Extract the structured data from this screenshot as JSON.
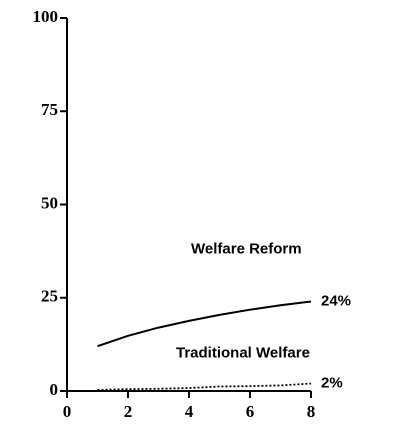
{
  "chart_data": {
    "type": "line",
    "x": [
      1,
      2,
      3,
      4,
      5,
      6,
      7,
      8
    ],
    "series": [
      {
        "name": "Welfare Reform",
        "color": "#000000",
        "dash": "solid",
        "values": [
          12,
          14.8,
          17,
          18.8,
          20.4,
          21.8,
          23,
          24
        ],
        "value_labels": [
          null,
          null,
          null,
          null,
          null,
          null,
          null,
          "24%"
        ]
      },
      {
        "name": "Traditional Welfare",
        "color": "#000000",
        "dash": "dotted",
        "values": [
          0.3,
          0.5,
          0.6,
          0.8,
          1.2,
          1.3,
          1.5,
          2
        ],
        "value_labels": [
          null,
          null,
          null,
          null,
          null,
          null,
          null,
          "2%"
        ]
      }
    ],
    "xlim": [
      0,
      8
    ],
    "xticks": [
      0,
      2,
      4,
      6,
      8
    ],
    "ylim": [
      0,
      100
    ],
    "yticks": [
      0,
      25,
      50,
      75,
      100
    ],
    "grid": false
  }
}
